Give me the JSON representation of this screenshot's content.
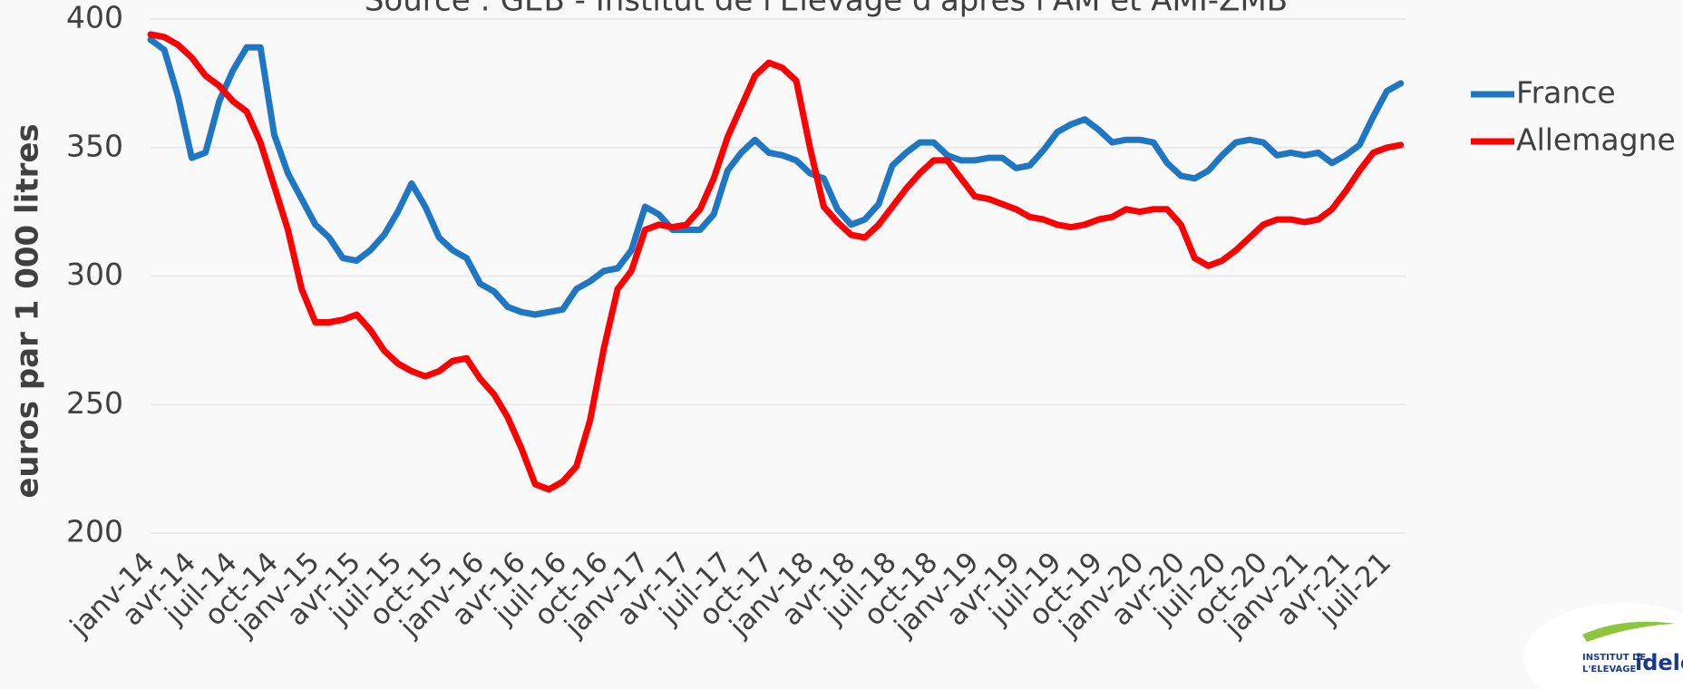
{
  "chart_data": {
    "type": "line",
    "subtitle": "Source : GEB - Institut de l'Elevage d'après l'AM et AMI-ZMB",
    "ylabel": "euros par 1 000 litres",
    "categories": [
      "janv-14",
      null,
      null,
      "avr-14",
      null,
      null,
      "juil-14",
      null,
      null,
      "oct-14",
      null,
      null,
      "janv-15",
      null,
      null,
      "avr-15",
      null,
      null,
      "juil-15",
      null,
      null,
      "oct-15",
      null,
      null,
      "janv-16",
      null,
      null,
      "avr-16",
      null,
      null,
      "juil-16",
      null,
      null,
      "oct-16",
      null,
      null,
      "janv-17",
      null,
      null,
      "avr-17",
      null,
      null,
      "juil-17",
      null,
      null,
      "oct-17",
      null,
      null,
      "janv-18",
      null,
      null,
      "avr-18",
      null,
      null,
      "juil-18",
      null,
      null,
      "oct-18",
      null,
      null,
      "janv-19",
      null,
      null,
      "avr-19",
      null,
      null,
      "juil-19",
      null,
      null,
      "oct-19",
      null,
      null,
      "janv-20",
      null,
      null,
      "avr-20",
      null,
      null,
      "juil-20",
      null,
      null,
      "oct-20",
      null,
      null,
      "janv-21",
      null,
      null,
      "avr-21",
      null,
      null,
      "juil-21",
      null
    ],
    "series": [
      {
        "name": "France",
        "color": "#1f77c4",
        "values": [
          392,
          388,
          370,
          346,
          348,
          368,
          380,
          389,
          389,
          355,
          340,
          330,
          320,
          315,
          307,
          306,
          310,
          316,
          325,
          336,
          327,
          315,
          310,
          307,
          297,
          294,
          288,
          286,
          285,
          286,
          287,
          295,
          298,
          302,
          303,
          310,
          327,
          324,
          318,
          318,
          318,
          324,
          341,
          348,
          353,
          348,
          347,
          345,
          340,
          338,
          326,
          320,
          322,
          328,
          343,
          348,
          352,
          352,
          347,
          345,
          345,
          346,
          346,
          342,
          343,
          349,
          356,
          359,
          361,
          357,
          352,
          353,
          353,
          352,
          344,
          339,
          338,
          341,
          347,
          352,
          353,
          352,
          347,
          348,
          347,
          348,
          344,
          347,
          351,
          362,
          372,
          375
        ]
      },
      {
        "name": "Allemagne",
        "color": "#ff0000",
        "values": [
          394,
          393,
          390,
          385,
          378,
          374,
          368,
          364,
          352,
          335,
          318,
          295,
          282,
          282,
          283,
          285,
          279,
          271,
          266,
          263,
          261,
          263,
          267,
          268,
          260,
          254,
          245,
          233,
          219,
          217,
          220,
          226,
          244,
          272,
          295,
          302,
          318,
          320,
          319,
          320,
          326,
          338,
          354,
          366,
          378,
          383,
          381,
          376,
          350,
          327,
          321,
          316,
          315,
          320,
          327,
          334,
          340,
          345,
          345,
          338,
          331,
          330,
          328,
          326,
          323,
          322,
          320,
          319,
          320,
          322,
          323,
          326,
          325,
          326,
          326,
          320,
          307,
          304,
          306,
          310,
          315,
          320,
          322,
          322,
          321,
          322,
          326,
          333,
          341,
          348,
          350,
          351
        ]
      }
    ],
    "ylim": [
      200,
      400
    ],
    "yticks": [
      200,
      250,
      300,
      350,
      400
    ],
    "grid": true,
    "legend": "right"
  },
  "logo": {
    "line1": "INSTITUT DE",
    "line2": "L'ELEVAGE",
    "brand": "idele"
  }
}
